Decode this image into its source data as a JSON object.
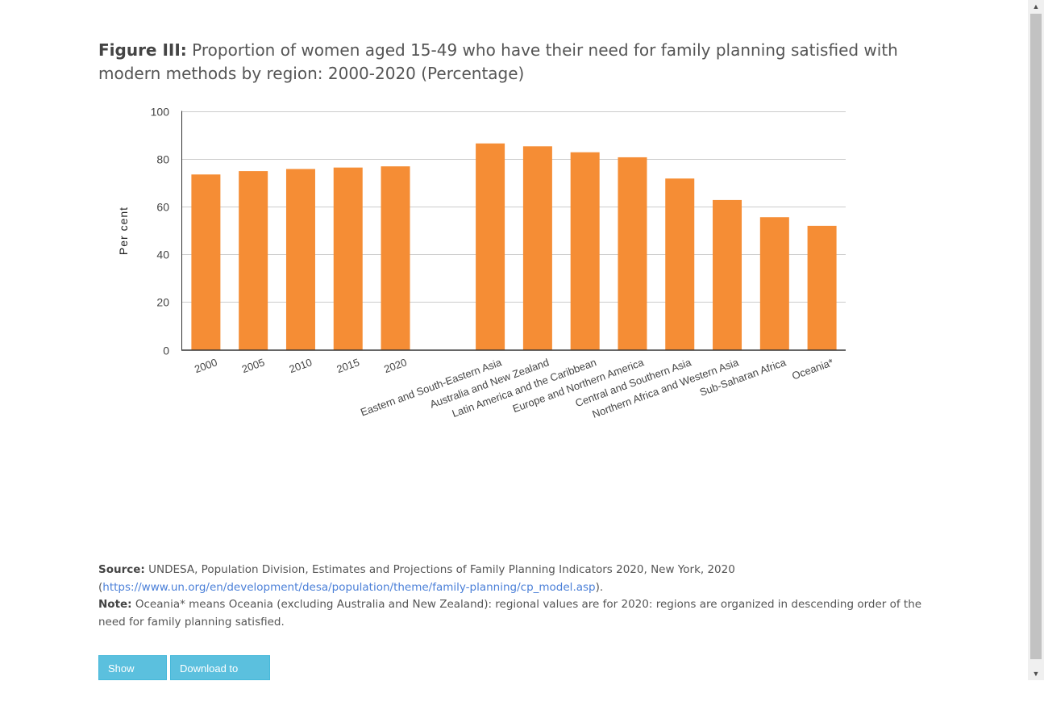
{
  "header": {
    "figure_label": "Figure III:",
    "title": "Proportion of women aged 15-49 who have their need for family planning satisfied with modern methods by region: 2000-2020 (Percentage)"
  },
  "chart_data": {
    "type": "bar",
    "title": "Proportion of women aged 15-49 who have their need for family planning satisfied with modern methods by region: 2000-2020 (Percentage)",
    "xlabel": "",
    "ylabel": "Per cent",
    "ylim": [
      0,
      100
    ],
    "yticks": [
      0,
      20,
      40,
      60,
      80,
      100
    ],
    "grid": true,
    "legend": "none",
    "bar_color": "#f58d35",
    "categories": [
      "2000",
      "2005",
      "2010",
      "2015",
      "2020",
      "",
      "Eastern and South-Eastern Asia",
      "Australia and New Zealand",
      "Latin America and the Caribbean",
      "Europe and Northern America",
      "Central and Southern Asia",
      "Northern Africa and Western Asia",
      "Sub-Saharan Africa",
      "Oceania*"
    ],
    "values": [
      73.4,
      74.8,
      75.7,
      76.3,
      76.8,
      null,
      86.4,
      85.2,
      82.7,
      80.6,
      71.7,
      62.7,
      55.5,
      51.9
    ]
  },
  "notes": {
    "source_label": "Source:",
    "source_text": " UNDESA, Population Division, Estimates and Projections of Family Planning Indicators 2020, New York, 2020",
    "source_open": "(",
    "source_link": "https://www.un.org/en/development/desa/population/theme/family-planning/cp_model.asp",
    "source_close": ").",
    "note_label": "Note:",
    "note_text": " Oceania* means Oceania (excluding Australia and New Zealand): regional values are for 2020: regions are organized in descending order of the need for family planning satisfied."
  },
  "buttons": {
    "show_data": "Show Data",
    "download_csv": "Download to CSV"
  },
  "colors": {
    "bar": "#f58d35",
    "button": "#5bc0de",
    "link": "#4a7fd8"
  }
}
